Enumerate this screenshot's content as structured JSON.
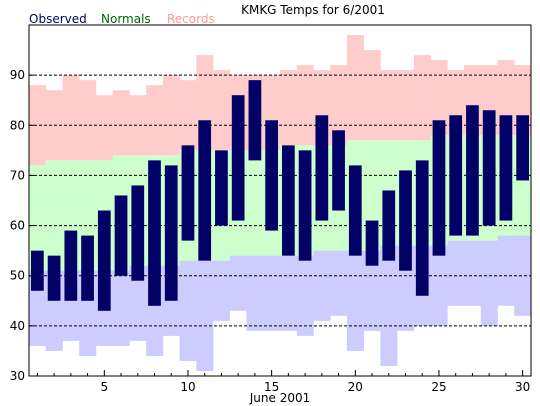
{
  "chart_data": {
    "type": "bar",
    "title": "KMKG Temps for 6/2001",
    "xlabel": "June 2001",
    "ylabel": "",
    "ylim": [
      30,
      100
    ],
    "xlim": [
      0.5,
      30.5
    ],
    "grid": "dashed-horizontal",
    "legend": [
      {
        "label": "Observed",
        "color": "#000066"
      },
      {
        "label": "Normals",
        "color": "#006600"
      },
      {
        "label": "Records",
        "color": "#ff9999"
      }
    ],
    "y_ticks": [
      30,
      40,
      50,
      60,
      70,
      80,
      90
    ],
    "y_gridlines": [
      40,
      50,
      60,
      70,
      80,
      90
    ],
    "x_tick_labels": [
      5,
      10,
      15,
      20,
      25,
      30
    ],
    "colors": {
      "record": "#ffcccc",
      "normal": "#ccffcc",
      "record_low": "#ccccff",
      "observed": "#000066"
    },
    "days": [
      1,
      2,
      3,
      4,
      5,
      6,
      7,
      8,
      9,
      10,
      11,
      12,
      13,
      14,
      15,
      16,
      17,
      18,
      19,
      20,
      21,
      22,
      23,
      24,
      25,
      26,
      27,
      28,
      29,
      30
    ],
    "record_high": [
      88,
      87,
      90,
      89,
      86,
      87,
      86,
      88,
      90,
      89,
      94,
      91,
      90,
      90,
      90,
      91,
      92,
      91,
      92,
      98,
      95,
      91,
      91,
      94,
      93,
      91,
      92,
      92,
      93,
      92
    ],
    "normal_high": [
      72,
      73,
      73,
      73,
      73,
      74,
      74,
      74,
      74,
      75,
      75,
      75,
      75,
      75,
      75,
      76,
      76,
      76,
      76,
      77,
      77,
      77,
      77,
      77,
      78,
      78,
      78,
      78,
      78,
      78
    ],
    "normal_low": [
      51,
      51,
      51,
      51,
      51,
      51,
      52,
      52,
      52,
      53,
      53,
      53,
      54,
      54,
      54,
      54,
      54,
      55,
      55,
      55,
      55,
      56,
      56,
      56,
      56,
      57,
      57,
      57,
      58,
      58
    ],
    "record_low": [
      36,
      35,
      37,
      34,
      36,
      36,
      37,
      34,
      38,
      33,
      31,
      41,
      43,
      39,
      39,
      39,
      38,
      41,
      42,
      35,
      39,
      32,
      39,
      40,
      40,
      44,
      44,
      40,
      44,
      42
    ],
    "observed_high": [
      55,
      54,
      59,
      58,
      63,
      66,
      68,
      73,
      72,
      76,
      81,
      75,
      86,
      89,
      81,
      76,
      75,
      82,
      79,
      72,
      61,
      67,
      71,
      73,
      81,
      82,
      84,
      83,
      82,
      82
    ],
    "observed_low": [
      47,
      45,
      45,
      45,
      43,
      50,
      49,
      44,
      45,
      57,
      53,
      60,
      61,
      73,
      59,
      54,
      53,
      61,
      63,
      54,
      52,
      53,
      51,
      46,
      54,
      58,
      58,
      60,
      61,
      69
    ]
  }
}
